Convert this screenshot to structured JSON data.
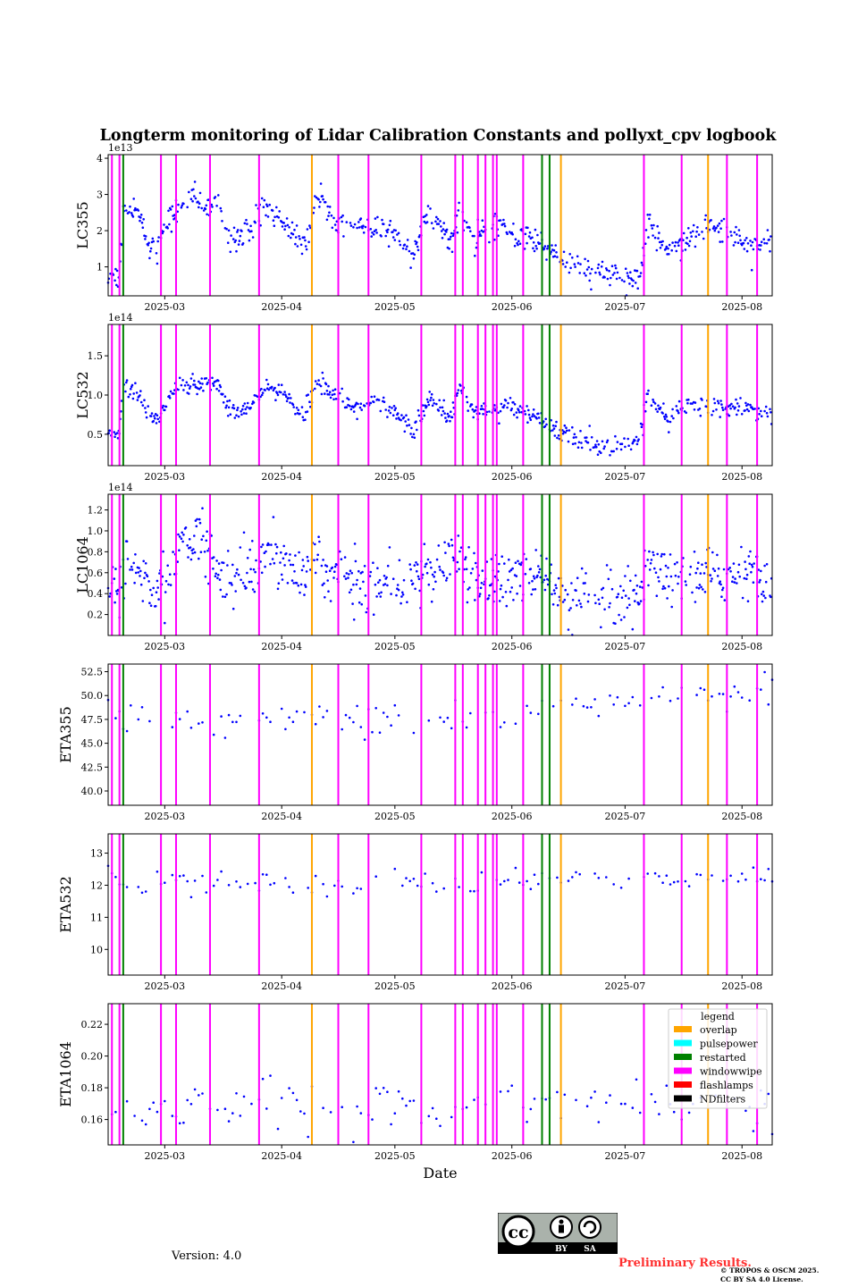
{
  "figure_title": "Longterm monitoring of Lidar Calibration Constants and pollyxt_cpv logbook",
  "xlabel": "Date",
  "version_text": "Version: 4.0",
  "preliminary_text": "Preliminary Results.",
  "copyright_lines": [
    "© TROPOS & OSCM 2025.",
    "CC BY SA 4.0 License."
  ],
  "license_badge": {
    "cc": "cc",
    "by": "BY",
    "sa": "SA"
  },
  "colors": {
    "points": "#0000ff",
    "overlap": "#ffa500",
    "pulsepower": "#00ffff",
    "restarted": "#008000",
    "windowwipe": "#ff00ff",
    "flashlamps": "#ff0000",
    "NDfilters": "#000000"
  },
  "legend": {
    "title": "legend",
    "entries": [
      "overlap",
      "pulsepower",
      "restarted",
      "windowwipe",
      "flashlamps",
      "NDfilters"
    ]
  },
  "logbook_events": {
    "windowwipe": [
      "2025-02-15",
      "2025-02-17",
      "2025-02-28",
      "2025-03-04",
      "2025-03-13",
      "2025-03-26",
      "2025-04-16",
      "2025-04-24",
      "2025-05-08",
      "2025-05-17",
      "2025-05-19",
      "2025-05-23",
      "2025-05-25",
      "2025-05-27",
      "2025-05-28",
      "2025-06-04",
      "2025-07-06",
      "2025-07-16",
      "2025-07-28",
      "2025-08-05"
    ],
    "restarted": [
      "2025-02-18",
      "2025-06-09",
      "2025-06-11"
    ],
    "overlap": [
      "2025-04-09",
      "2025-06-14",
      "2025-07-23"
    ]
  },
  "chart_data": [
    {
      "type": "scatter",
      "ylabel": "LC355",
      "offset_text": "1e13",
      "xlim": [
        "2025-02-14",
        "2025-08-09"
      ],
      "ylim": [
        0.2,
        4.1
      ],
      "xticks": [
        "2025-03",
        "2025-04",
        "2025-05",
        "2025-06",
        "2025-07",
        "2025-08"
      ],
      "yticks": [
        "1",
        "2",
        "3",
        "4"
      ],
      "trend": [
        [
          "2025-02-14",
          0.75
        ],
        [
          "2025-02-17",
          0.7
        ],
        [
          "2025-02-18",
          2.75
        ],
        [
          "2025-02-21",
          2.7
        ],
        [
          "2025-02-25",
          1.6
        ],
        [
          "2025-02-27",
          1.4
        ],
        [
          "2025-03-01",
          2.2
        ],
        [
          "2025-03-05",
          2.6
        ],
        [
          "2025-03-08",
          3.0
        ],
        [
          "2025-03-12",
          2.6
        ],
        [
          "2025-03-15",
          2.8
        ],
        [
          "2025-03-18",
          1.8
        ],
        [
          "2025-03-24",
          2.0
        ],
        [
          "2025-03-27",
          2.7
        ],
        [
          "2025-04-01",
          2.3
        ],
        [
          "2025-04-05",
          1.8
        ],
        [
          "2025-04-08",
          1.7
        ],
        [
          "2025-04-10",
          2.9
        ],
        [
          "2025-04-15",
          2.4
        ],
        [
          "2025-04-20",
          2.2
        ],
        [
          "2025-04-25",
          2.0
        ],
        [
          "2025-05-01",
          2.0
        ],
        [
          "2025-05-06",
          1.4
        ],
        [
          "2025-05-10",
          2.5
        ],
        [
          "2025-05-16",
          1.7
        ],
        [
          "2025-05-18",
          2.6
        ],
        [
          "2025-05-22",
          1.9
        ],
        [
          "2025-05-29",
          2.1
        ],
        [
          "2025-06-04",
          1.8
        ],
        [
          "2025-06-12",
          1.5
        ],
        [
          "2025-06-14",
          1.2
        ],
        [
          "2025-06-20",
          0.95
        ],
        [
          "2025-06-25",
          0.8
        ],
        [
          "2025-07-01",
          0.7
        ],
        [
          "2025-07-05",
          0.6
        ],
        [
          "2025-07-07",
          2.3
        ],
        [
          "2025-07-12",
          1.5
        ],
        [
          "2025-07-20",
          1.9
        ],
        [
          "2025-07-24",
          2.2
        ],
        [
          "2025-08-01",
          1.7
        ],
        [
          "2025-08-09",
          1.5
        ]
      ],
      "noise": 0.18
    },
    {
      "type": "scatter",
      "ylabel": "LC532",
      "offset_text": "1e14",
      "xlim": [
        "2025-02-14",
        "2025-08-09"
      ],
      "ylim": [
        0.1,
        1.9
      ],
      "xticks": [
        "2025-03",
        "2025-04",
        "2025-05",
        "2025-06",
        "2025-07",
        "2025-08"
      ],
      "yticks": [
        "0.5",
        "1.0",
        "1.5"
      ],
      "trend": [
        [
          "2025-02-14",
          0.5
        ],
        [
          "2025-02-17",
          0.5
        ],
        [
          "2025-02-18",
          1.1
        ],
        [
          "2025-02-21",
          1.05
        ],
        [
          "2025-02-25",
          0.7
        ],
        [
          "2025-02-28",
          0.7
        ],
        [
          "2025-03-02",
          0.95
        ],
        [
          "2025-03-05",
          1.15
        ],
        [
          "2025-03-10",
          1.1
        ],
        [
          "2025-03-15",
          1.15
        ],
        [
          "2025-03-18",
          0.8
        ],
        [
          "2025-03-24",
          0.85
        ],
        [
          "2025-03-27",
          1.1
        ],
        [
          "2025-04-02",
          1.0
        ],
        [
          "2025-04-07",
          0.75
        ],
        [
          "2025-04-10",
          1.25
        ],
        [
          "2025-04-15",
          1.0
        ],
        [
          "2025-04-20",
          0.85
        ],
        [
          "2025-04-25",
          0.9
        ],
        [
          "2025-05-01",
          0.75
        ],
        [
          "2025-05-06",
          0.55
        ],
        [
          "2025-05-10",
          0.95
        ],
        [
          "2025-05-16",
          0.75
        ],
        [
          "2025-05-18",
          1.1
        ],
        [
          "2025-05-22",
          0.8
        ],
        [
          "2025-06-01",
          0.85
        ],
        [
          "2025-06-12",
          0.6
        ],
        [
          "2025-06-14",
          0.5
        ],
        [
          "2025-06-25",
          0.35
        ],
        [
          "2025-07-03",
          0.35
        ],
        [
          "2025-07-05",
          0.45
        ],
        [
          "2025-07-07",
          1.0
        ],
        [
          "2025-07-12",
          0.7
        ],
        [
          "2025-07-20",
          0.9
        ],
        [
          "2025-08-09",
          0.75
        ]
      ],
      "noise": 0.06
    },
    {
      "type": "scatter",
      "ylabel": "LC1064",
      "offset_text": "1e14",
      "xlim": [
        "2025-02-14",
        "2025-08-09"
      ],
      "ylim": [
        0.0,
        1.35
      ],
      "xticks": [
        "2025-03",
        "2025-04",
        "2025-05",
        "2025-06",
        "2025-07",
        "2025-08"
      ],
      "yticks": [
        "0.2",
        "0.4",
        "0.6",
        "0.8",
        "1.0",
        "1.2"
      ],
      "trend": [
        [
          "2025-02-14",
          0.45
        ],
        [
          "2025-02-17",
          0.4
        ],
        [
          "2025-02-19",
          0.8
        ],
        [
          "2025-02-25",
          0.4
        ],
        [
          "2025-03-01",
          0.5
        ],
        [
          "2025-03-04",
          0.75
        ],
        [
          "2025-03-06",
          0.9
        ],
        [
          "2025-03-12",
          0.85
        ],
        [
          "2025-03-16",
          0.55
        ],
        [
          "2025-03-25",
          0.55
        ],
        [
          "2025-03-28",
          0.85
        ],
        [
          "2025-04-05",
          0.6
        ],
        [
          "2025-04-10",
          0.75
        ],
        [
          "2025-04-20",
          0.5
        ],
        [
          "2025-05-01",
          0.45
        ],
        [
          "2025-05-10",
          0.6
        ],
        [
          "2025-05-18",
          0.75
        ],
        [
          "2025-05-22",
          0.5
        ],
        [
          "2025-06-10",
          0.55
        ],
        [
          "2025-06-14",
          0.35
        ],
        [
          "2025-06-25",
          0.3
        ],
        [
          "2025-07-05",
          0.3
        ],
        [
          "2025-07-07",
          0.75
        ],
        [
          "2025-07-12",
          0.5
        ],
        [
          "2025-07-20",
          0.6
        ],
        [
          "2025-08-09",
          0.55
        ]
      ],
      "noise": 0.13
    },
    {
      "type": "scatter",
      "ylabel": "ETA355",
      "offset_text": "",
      "xlim": [
        "2025-02-14",
        "2025-08-09"
      ],
      "ylim": [
        38.5,
        53.3
      ],
      "xticks": [
        "2025-03",
        "2025-04",
        "2025-05",
        "2025-06",
        "2025-07",
        "2025-08"
      ],
      "yticks": [
        "40.0",
        "42.5",
        "45.0",
        "47.5",
        "50.0",
        "52.5"
      ],
      "trend": [
        [
          "2025-02-14",
          48
        ],
        [
          "2025-02-20",
          47.5
        ],
        [
          "2025-03-20",
          47.5
        ],
        [
          "2025-05-20",
          47.5
        ],
        [
          "2025-06-10",
          48.5
        ],
        [
          "2025-07-01",
          49.5
        ],
        [
          "2025-08-09",
          50.5
        ]
      ],
      "noise": 0.8
    },
    {
      "type": "scatter",
      "ylabel": "ETA532",
      "offset_text": "",
      "xlim": [
        "2025-02-14",
        "2025-08-09"
      ],
      "ylim": [
        9.2,
        13.6
      ],
      "xticks": [
        "2025-03",
        "2025-04",
        "2025-05",
        "2025-06",
        "2025-07",
        "2025-08"
      ],
      "yticks": [
        "10",
        "11",
        "12",
        "13"
      ],
      "trend": [
        [
          "2025-02-14",
          12.3
        ],
        [
          "2025-03-01",
          12.1
        ],
        [
          "2025-05-01",
          12.0
        ],
        [
          "2025-06-10",
          12.2
        ],
        [
          "2025-08-09",
          12.3
        ]
      ],
      "noise": 0.18
    },
    {
      "type": "scatter",
      "ylabel": "ETA1064",
      "offset_text": "",
      "xlim": [
        "2025-02-14",
        "2025-08-09"
      ],
      "ylim": [
        0.144,
        0.233
      ],
      "xticks": [
        "2025-03",
        "2025-04",
        "2025-05",
        "2025-06",
        "2025-07",
        "2025-08"
      ],
      "yticks": [
        "0.16",
        "0.18",
        "0.20",
        "0.22"
      ],
      "trend": [
        [
          "2025-02-14",
          0.17
        ],
        [
          "2025-03-15",
          0.168
        ],
        [
          "2025-05-15",
          0.167
        ],
        [
          "2025-06-15",
          0.17
        ],
        [
          "2025-08-09",
          0.172
        ]
      ],
      "noise": 0.008
    }
  ]
}
